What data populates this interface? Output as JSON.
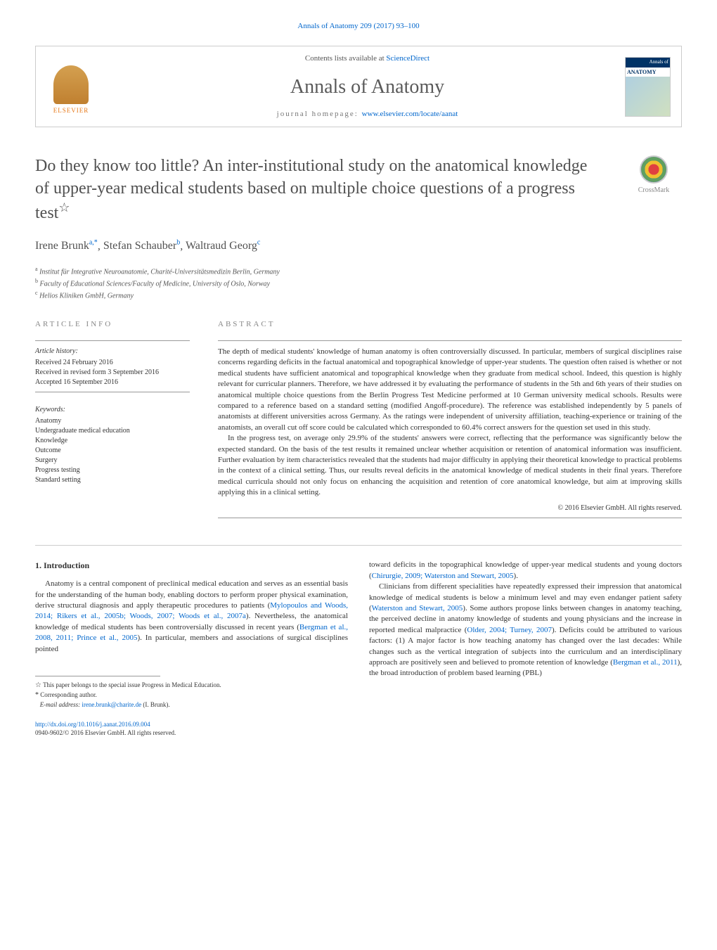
{
  "journal_ref": "Annals of Anatomy 209 (2017) 93–100",
  "header": {
    "contents_text": "Contents lists available at ",
    "sciencedirect": "ScienceDirect",
    "journal_name": "Annals of Anatomy",
    "homepage_label": "journal homepage: ",
    "homepage_url": "www.elsevier.com/locate/aanat",
    "elsevier": "ELSEVIER",
    "cover_top": "Annals of",
    "cover_title": "ANATOMY"
  },
  "crossmark": "CrossMark",
  "title": "Do they know too little? An inter-institutional study on the anatomical knowledge of upper-year medical students based on multiple choice questions of a progress test",
  "title_star": "☆",
  "authors": [
    {
      "name": "Irene Brunk",
      "sup": "a,*"
    },
    {
      "name": "Stefan Schauber",
      "sup": "b"
    },
    {
      "name": "Waltraud Georg",
      "sup": "c"
    }
  ],
  "affiliations": [
    {
      "sup": "a",
      "text": "Institut für Integrative Neuroanatomie, Charité-Universitätsmedizin Berlin, Germany"
    },
    {
      "sup": "b",
      "text": "Faculty of Educational Sciences/Faculty of Medicine, University of Oslo, Norway"
    },
    {
      "sup": "c",
      "text": "Helios Kliniken GmbH, Germany"
    }
  ],
  "info": {
    "heading": "ARTICLE INFO",
    "history_head": "Article history:",
    "history": [
      "Received 24 February 2016",
      "Received in revised form 3 September 2016",
      "Accepted 16 September 2016"
    ],
    "keywords_head": "Keywords:",
    "keywords": [
      "Anatomy",
      "Undergraduate medical education",
      "Knowledge",
      "Outcome",
      "Surgery",
      "Progress testing",
      "Standard setting"
    ]
  },
  "abstract": {
    "heading": "ABSTRACT",
    "p1": "The depth of medical students' knowledge of human anatomy is often controversially discussed. In particular, members of surgical disciplines raise concerns regarding deficits in the factual anatomical and topographical knowledge of upper-year students. The question often raised is whether or not medical students have sufficient anatomical and topographical knowledge when they graduate from medical school. Indeed, this question is highly relevant for curricular planners. Therefore, we have addressed it by evaluating the performance of students in the 5th and 6th years of their studies on anatomical multiple choice questions from the Berlin Progress Test Medicine performed at 10 German university medical schools. Results were compared to a reference based on a standard setting (modified Angoff-procedure). The reference was established independently by 5 panels of anatomists at different universities across Germany. As the ratings were independent of university affiliation, teaching-experience or training of the anatomists, an overall cut off score could be calculated which corresponded to 60.4% correct answers for the question set used in this study.",
    "p2": "In the progress test, on average only 29.9% of the students' answers were correct, reflecting that the performance was significantly below the expected standard. On the basis of the test results it remained unclear whether acquisition or retention of anatomical information was insufficient. Further evaluation by item characteristics revealed that the students had major difficulty in applying their theoretical knowledge to practical problems in the context of a clinical setting. Thus, our results reveal deficits in the anatomical knowledge of medical students in their final years. Therefore medical curricula should not only focus on enhancing the acquisition and retention of core anatomical knowledge, but aim at improving skills applying this in a clinical setting.",
    "copyright": "© 2016 Elsevier GmbH. All rights reserved."
  },
  "section1_head": "1. Introduction",
  "intro_left": {
    "p1a": "Anatomy is a central component of preclinical medical education and serves as an essential basis for the understanding of the human body, enabling doctors to perform proper physical examination, derive structural diagnosis and apply therapeutic procedures to patients (",
    "cite1": "Mylopoulos and Woods, 2014; Rikers et al., 2005b; Woods, 2007; Woods et al., 2007a",
    "p1b": "). Nevertheless, the anatomical knowledge of medical students has been controversially discussed in recent years (",
    "cite2": "Bergman et al., 2008, 2011; Prince et al., 2005",
    "p1c": "). In particular, members and associations of surgical disciplines pointed"
  },
  "intro_right": {
    "p1a": "toward deficits in the topographical knowledge of upper-year medical students and young doctors (",
    "cite1": "Chirurgie, 2009; Waterston and Stewart, 2005",
    "p1b": ").",
    "p2a": "Clinicians from different specialities have repeatedly expressed their impression that anatomical knowledge of medical students is below a minimum level and may even endanger patient safety (",
    "cite2": "Waterston and Stewart, 2005",
    "p2b": "). Some authors propose links between changes in anatomy teaching, the perceived decline in anatomy knowledge of students and young physicians and the increase in reported medical malpractice (",
    "cite3": "Older, 2004; Turney, 2007",
    "p2c": "). Deficits could be attributed to various factors: (1) A major factor is how teaching anatomy has changed over the last decades: While changes such as the vertical integration of subjects into the curriculum and an interdisciplinary approach are positively seen and believed to promote retention of knowledge (",
    "cite4": "Bergman et al., 2011",
    "p2d": "), the broad introduction of problem based learning (PBL)"
  },
  "footnotes": {
    "star_note": "This paper belongs to the special issue Progress in Medical Education.",
    "corr_label": "Corresponding author.",
    "email_label": "E-mail address: ",
    "email": "irene.brunk@charite.de",
    "email_author": " (I. Brunk)."
  },
  "doi": {
    "url": "http://dx.doi.org/10.1016/j.aanat.2016.09.004",
    "issn_line": "0940-9602/© 2016 Elsevier GmbH. All rights reserved."
  },
  "colors": {
    "link": "#0066cc",
    "text": "#333333",
    "heading": "#505050",
    "border": "#cccccc"
  }
}
